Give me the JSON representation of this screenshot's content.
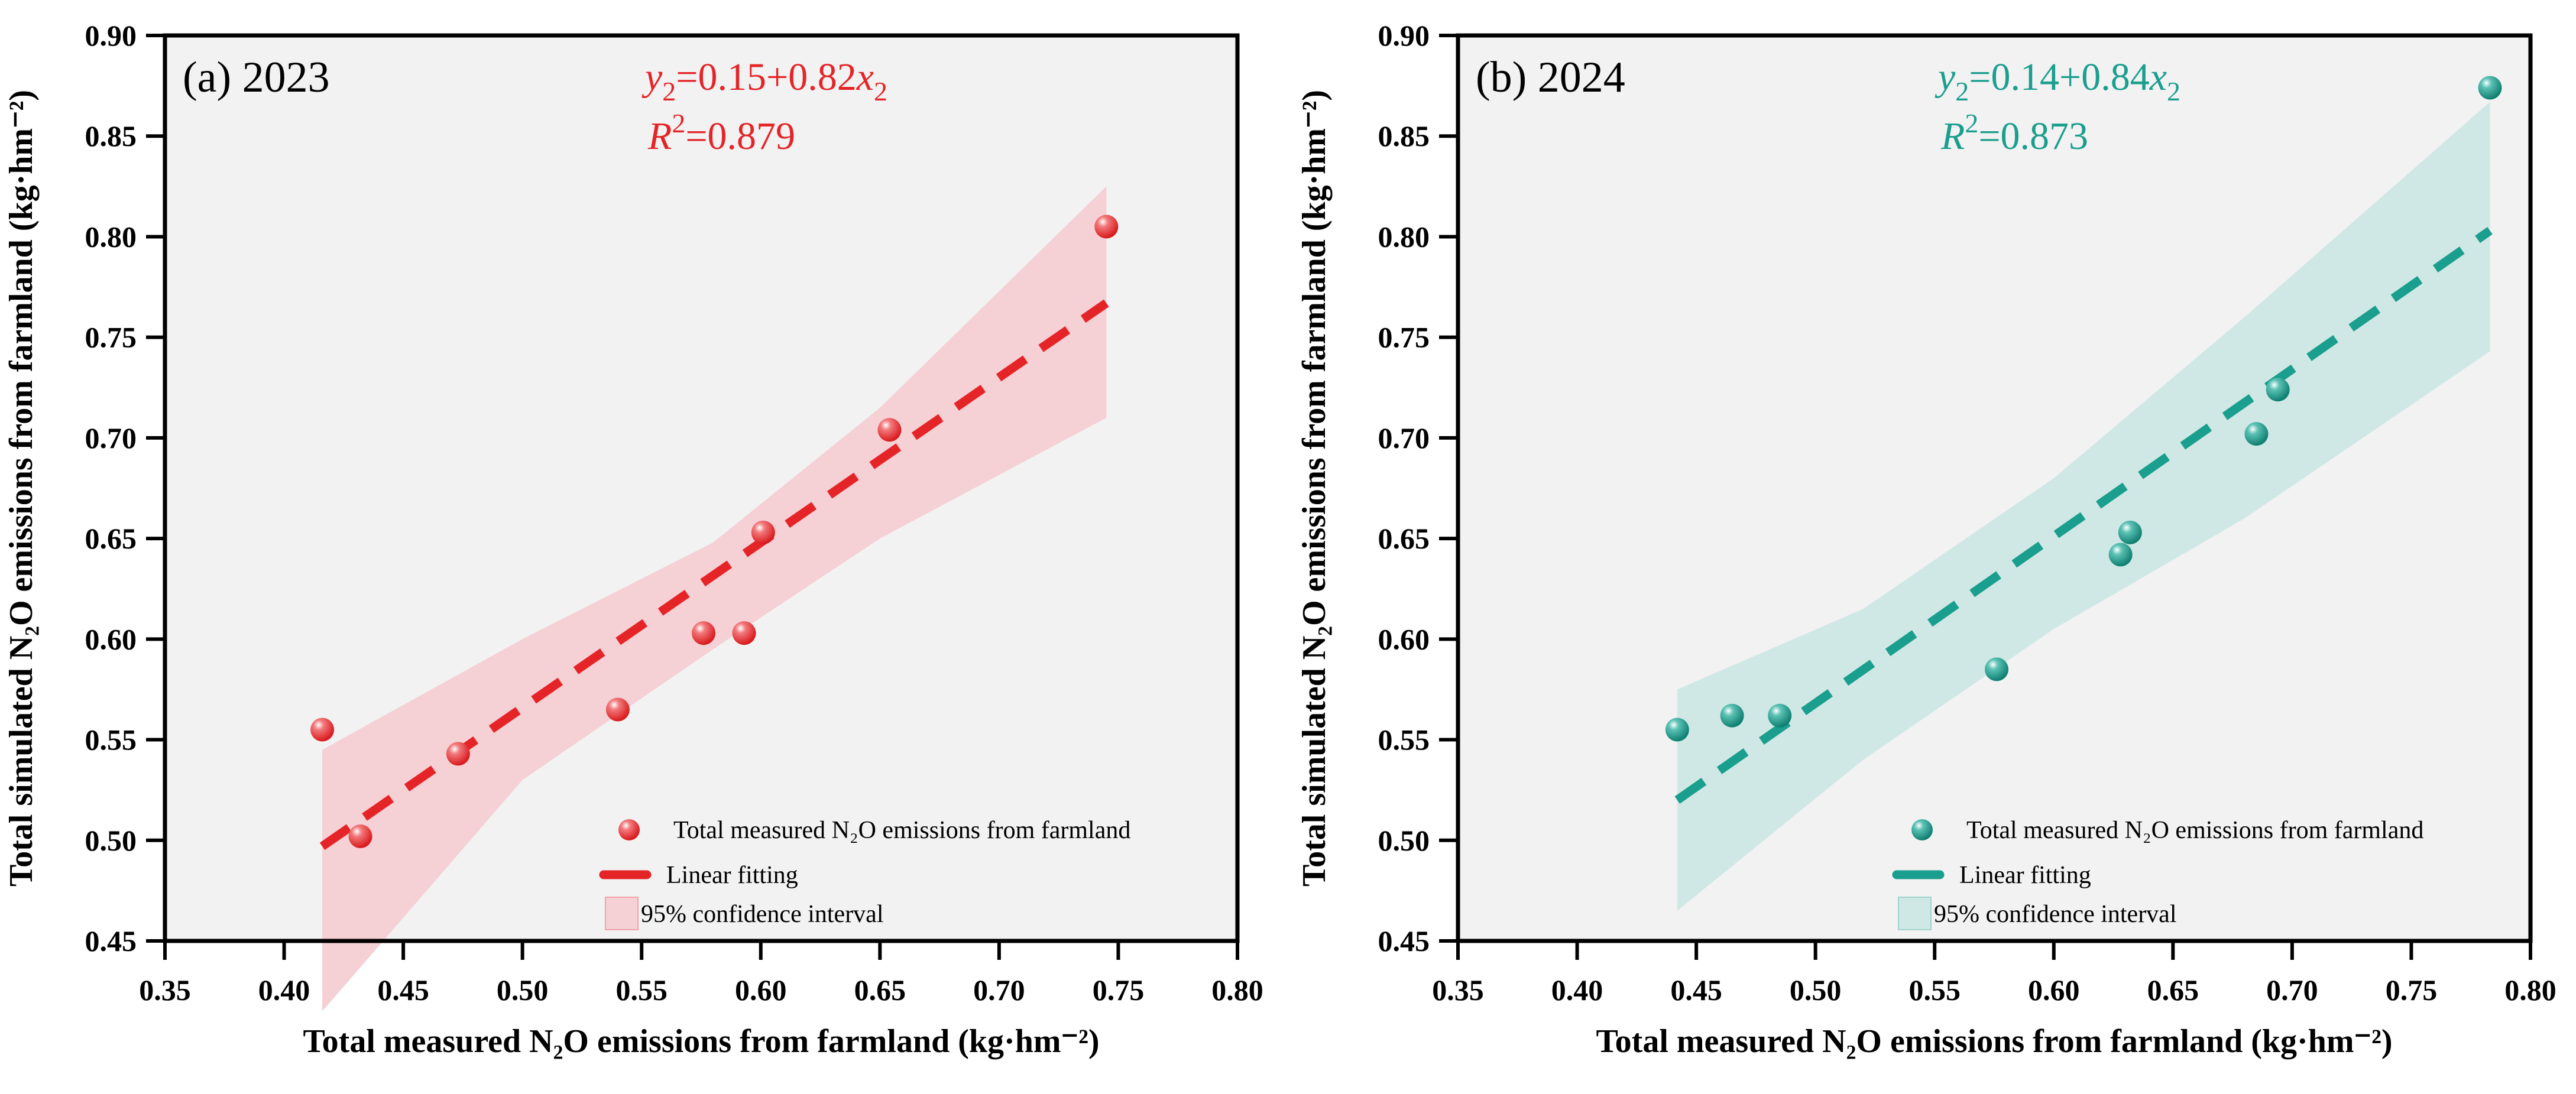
{
  "chart_data": [
    {
      "type": "scatter",
      "panel_title": "(a) 2023",
      "xlabel": "Total measured N₂O emissions from farmland (kg·hm⁻²)",
      "ylabel": "Total simulated N₂O emissions from farmland (kg·hm⁻²)",
      "xlim": [
        0.35,
        0.8
      ],
      "ylim": [
        0.45,
        0.9
      ],
      "xticks": [
        "0.35",
        "0.40",
        "0.45",
        "0.50",
        "0.55",
        "0.60",
        "0.65",
        "0.70",
        "0.75",
        "0.80"
      ],
      "yticks": [
        "0.45",
        "0.50",
        "0.55",
        "0.60",
        "0.65",
        "0.70",
        "0.75",
        "0.80",
        "0.85",
        "0.90"
      ],
      "color": "#e52427",
      "band_color": "#f5d0d5",
      "equation": {
        "y": "y",
        "sub": "2",
        "body": "=0.15+0.82",
        "x": "x",
        "r": "R",
        "sup": "2",
        "r2": "=0.879"
      },
      "points": [
        [
          0.416,
          0.555
        ],
        [
          0.432,
          0.502
        ],
        [
          0.473,
          0.543
        ],
        [
          0.54,
          0.565
        ],
        [
          0.576,
          0.603
        ],
        [
          0.593,
          0.603
        ],
        [
          0.601,
          0.653
        ],
        [
          0.654,
          0.704
        ],
        [
          0.745,
          0.805
        ]
      ],
      "fit": [
        [
          0.416,
          0.497
        ],
        [
          0.745,
          0.767
        ]
      ],
      "ci": {
        "x": [
          0.416,
          0.5,
          0.58,
          0.65,
          0.745
        ],
        "lower": [
          0.415,
          0.53,
          0.595,
          0.65,
          0.71
        ],
        "upper": [
          0.545,
          0.6,
          0.648,
          0.715,
          0.825
        ]
      },
      "legend": [
        "Total measured N₂O emissions from farmland",
        "Linear fitting",
        "95% confidence interval"
      ]
    },
    {
      "type": "scatter",
      "panel_title": "(b) 2024",
      "xlabel": "Total measured N₂O emissions from farmland (kg·hm⁻²)",
      "ylabel": "Total simulated N₂O emissions from farmland (kg·hm⁻²)",
      "xlim": [
        0.35,
        0.8
      ],
      "ylim": [
        0.45,
        0.9
      ],
      "xticks": [
        "0.35",
        "0.40",
        "0.45",
        "0.50",
        "0.55",
        "0.60",
        "0.65",
        "0.70",
        "0.75",
        "0.80"
      ],
      "yticks": [
        "0.45",
        "0.50",
        "0.55",
        "0.60",
        "0.65",
        "0.70",
        "0.75",
        "0.80",
        "0.85",
        "0.90"
      ],
      "color": "#1a9e8e",
      "band_color": "#cfe8e5",
      "equation": {
        "y": "y",
        "sub": "2",
        "body": "=0.14+0.84",
        "x": "x",
        "r": "R",
        "sup": "2",
        "r2": "=0.873"
      },
      "points": [
        [
          0.442,
          0.555
        ],
        [
          0.465,
          0.562
        ],
        [
          0.485,
          0.562
        ],
        [
          0.576,
          0.585
        ],
        [
          0.628,
          0.642
        ],
        [
          0.632,
          0.653
        ],
        [
          0.685,
          0.702
        ],
        [
          0.694,
          0.724
        ],
        [
          0.783,
          0.874
        ]
      ],
      "fit": [
        [
          0.442,
          0.52
        ],
        [
          0.783,
          0.803
        ]
      ],
      "ci": {
        "x": [
          0.442,
          0.52,
          0.6,
          0.68,
          0.783
        ],
        "lower": [
          0.465,
          0.54,
          0.605,
          0.66,
          0.743
        ],
        "upper": [
          0.575,
          0.615,
          0.68,
          0.76,
          0.867
        ]
      },
      "legend": [
        "Total measured N₂O emissions from farmland",
        "Linear fitting",
        "95% confidence interval"
      ]
    }
  ]
}
